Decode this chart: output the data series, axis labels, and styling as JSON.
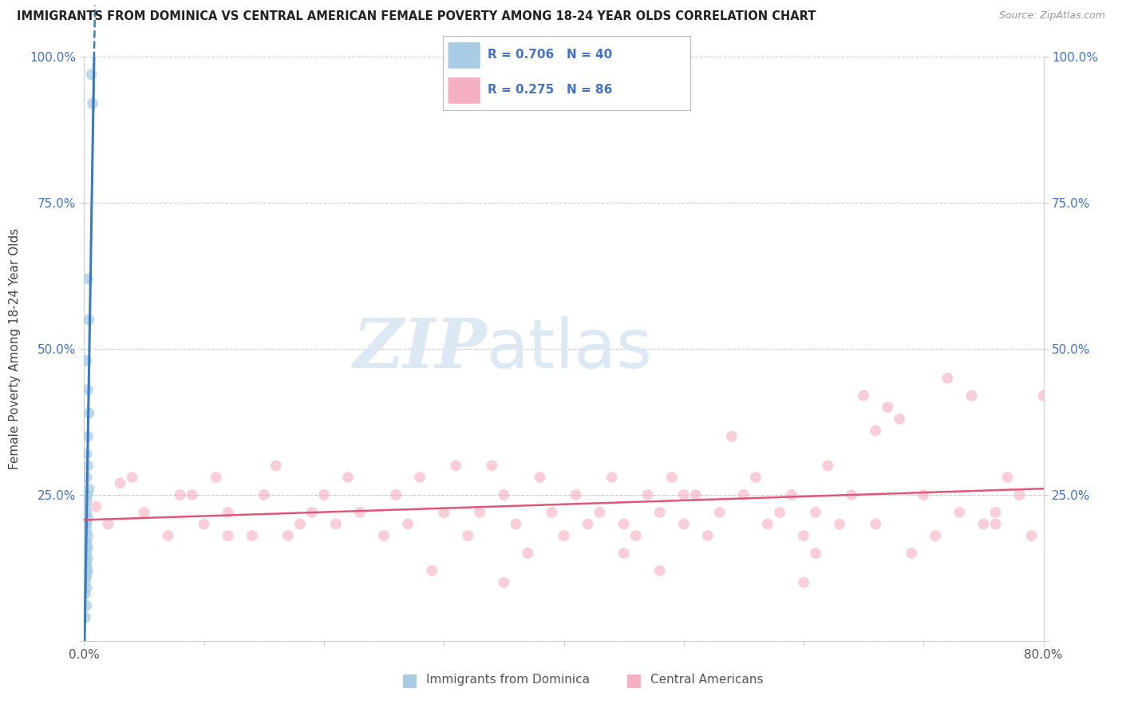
{
  "title": "IMMIGRANTS FROM DOMINICA VS CENTRAL AMERICAN FEMALE POVERTY AMONG 18-24 YEAR OLDS CORRELATION CHART",
  "source": "Source: ZipAtlas.com",
  "ylabel": "Female Poverty Among 18-24 Year Olds",
  "xlim": [
    0.0,
    0.8
  ],
  "ylim": [
    0.0,
    1.0
  ],
  "blue_R": 0.706,
  "blue_N": 40,
  "pink_R": 0.275,
  "pink_N": 86,
  "blue_color": "#a8cce4",
  "pink_color": "#f4afc0",
  "blue_line_color": "#3a7bbf",
  "pink_line_color": "#e05878",
  "watermark_ZIP": "ZIP",
  "watermark_atlas": "atlas",
  "watermark_color": "#dce8f4",
  "legend_label_blue": "Immigrants from Dominica",
  "legend_label_pink": "Central Americans",
  "blue_scatter_x": [
    0.006,
    0.007,
    0.003,
    0.004,
    0.002,
    0.003,
    0.004,
    0.003,
    0.002,
    0.003,
    0.002,
    0.004,
    0.003,
    0.002,
    0.001,
    0.002,
    0.003,
    0.002,
    0.001,
    0.002,
    0.003,
    0.001,
    0.002,
    0.003,
    0.002,
    0.001,
    0.002,
    0.001,
    0.003,
    0.002,
    0.001,
    0.002,
    0.003,
    0.001,
    0.002,
    0.001,
    0.002,
    0.001,
    0.002,
    0.001
  ],
  "blue_scatter_y": [
    0.97,
    0.92,
    0.62,
    0.55,
    0.48,
    0.43,
    0.39,
    0.35,
    0.32,
    0.3,
    0.28,
    0.26,
    0.25,
    0.24,
    0.23,
    0.22,
    0.21,
    0.2,
    0.2,
    0.19,
    0.18,
    0.17,
    0.17,
    0.16,
    0.16,
    0.15,
    0.15,
    0.14,
    0.14,
    0.13,
    0.13,
    0.12,
    0.12,
    0.11,
    0.11,
    0.1,
    0.09,
    0.08,
    0.06,
    0.04
  ],
  "pink_scatter_x": [
    0.01,
    0.02,
    0.03,
    0.05,
    0.07,
    0.09,
    0.1,
    0.11,
    0.12,
    0.14,
    0.15,
    0.16,
    0.17,
    0.19,
    0.2,
    0.21,
    0.22,
    0.23,
    0.25,
    0.26,
    0.27,
    0.28,
    0.3,
    0.31,
    0.32,
    0.34,
    0.35,
    0.36,
    0.37,
    0.38,
    0.39,
    0.4,
    0.41,
    0.42,
    0.43,
    0.44,
    0.45,
    0.46,
    0.47,
    0.48,
    0.49,
    0.5,
    0.51,
    0.52,
    0.53,
    0.54,
    0.55,
    0.56,
    0.57,
    0.58,
    0.59,
    0.6,
    0.61,
    0.62,
    0.63,
    0.64,
    0.65,
    0.66,
    0.67,
    0.68,
    0.69,
    0.7,
    0.71,
    0.72,
    0.73,
    0.74,
    0.75,
    0.76,
    0.77,
    0.78,
    0.79,
    0.8,
    0.35,
    0.48,
    0.61,
    0.04,
    0.18,
    0.33,
    0.5,
    0.66,
    0.12,
    0.29,
    0.45,
    0.6,
    0.76,
    0.08
  ],
  "pink_scatter_y": [
    0.23,
    0.2,
    0.27,
    0.22,
    0.18,
    0.25,
    0.2,
    0.28,
    0.22,
    0.18,
    0.25,
    0.3,
    0.18,
    0.22,
    0.25,
    0.2,
    0.28,
    0.22,
    0.18,
    0.25,
    0.2,
    0.28,
    0.22,
    0.3,
    0.18,
    0.3,
    0.25,
    0.2,
    0.15,
    0.28,
    0.22,
    0.18,
    0.25,
    0.2,
    0.22,
    0.28,
    0.2,
    0.18,
    0.25,
    0.22,
    0.28,
    0.2,
    0.25,
    0.18,
    0.22,
    0.35,
    0.25,
    0.28,
    0.2,
    0.22,
    0.25,
    0.18,
    0.22,
    0.3,
    0.2,
    0.25,
    0.42,
    0.2,
    0.4,
    0.38,
    0.15,
    0.25,
    0.18,
    0.45,
    0.22,
    0.42,
    0.2,
    0.22,
    0.28,
    0.25,
    0.18,
    0.42,
    0.1,
    0.12,
    0.15,
    0.28,
    0.2,
    0.22,
    0.25,
    0.36,
    0.18,
    0.12,
    0.15,
    0.1,
    0.2,
    0.25
  ]
}
